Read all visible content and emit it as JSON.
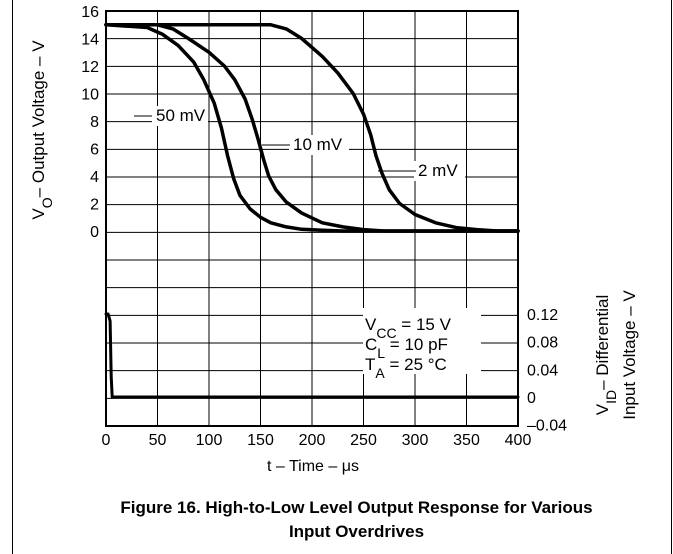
{
  "figure": {
    "caption_line1": "Figure 16. High-to-Low Level Output Response for Various",
    "caption_line2": "Input Overdrives"
  },
  "chart_data": {
    "type": "line",
    "title": "",
    "xlabel": "t – Time – μs",
    "ylabel_parts": {
      "v": "V",
      "sub": "O",
      "rest": "– Output Voltage – V"
    },
    "ylabel2_line1_parts": {
      "v": "V",
      "sub": "ID",
      "rest": "– Differential"
    },
    "ylabel2_line2": "Input Voltage – V",
    "xlim": [
      0,
      400
    ],
    "x_ticks": [
      "0",
      "50",
      "100",
      "150",
      "200",
      "250",
      "300",
      "350",
      "400"
    ],
    "ylim": [
      0,
      16
    ],
    "y_ticks": [
      "0",
      "2",
      "4",
      "6",
      "8",
      "10",
      "12",
      "14",
      "16"
    ],
    "y2lim": [
      -0.04,
      0.12
    ],
    "y2_ticks": [
      "–0.04",
      "0",
      "0.04",
      "0.08",
      "0.12"
    ],
    "grid": true,
    "series": [
      {
        "name": "50 mV",
        "axis": "left",
        "x": [
          0,
          40,
          55,
          70,
          85,
          95,
          105,
          112,
          118,
          124,
          130,
          140,
          150,
          160,
          175,
          190,
          210,
          230,
          260,
          300,
          400
        ],
        "y": [
          15,
          14.8,
          14.3,
          13.5,
          12.3,
          11,
          9.3,
          7.5,
          5.5,
          3.8,
          2.6,
          1.6,
          1.0,
          0.6,
          0.3,
          0.12,
          0.05,
          0,
          0,
          0,
          0
        ]
      },
      {
        "name": "10 mV",
        "axis": "left",
        "x": [
          0,
          50,
          65,
          80,
          100,
          115,
          125,
          135,
          142,
          148,
          153,
          158,
          165,
          175,
          190,
          210,
          230,
          250,
          270,
          300,
          400
        ],
        "y": [
          15,
          15,
          14.7,
          14,
          13,
          12,
          11,
          9.6,
          8.1,
          6.6,
          5.2,
          4.0,
          3.0,
          2.1,
          1.3,
          0.6,
          0.3,
          0.1,
          0,
          0,
          0
        ]
      },
      {
        "name": "2 mV",
        "axis": "left",
        "x": [
          0,
          160,
          175,
          190,
          210,
          225,
          240,
          250,
          257,
          262,
          268,
          275,
          285,
          300,
          320,
          340,
          360,
          380,
          400
        ],
        "y": [
          15,
          15,
          14.7,
          14,
          12.7,
          11.5,
          10,
          8.5,
          7,
          5.5,
          4.2,
          3,
          2,
          1.2,
          0.6,
          0.25,
          0.1,
          0,
          0
        ]
      },
      {
        "name": "",
        "axis": "right",
        "x": [
          0,
          2,
          4,
          5,
          6,
          8,
          400
        ],
        "y": [
          0.12,
          0.12,
          0.11,
          0.03,
          0,
          0,
          0
        ]
      }
    ],
    "annotations": [
      {
        "kind": "params",
        "lines": [
          {
            "parts": [
              {
                "t": "V"
              },
              {
                "t": "CC",
                "sub": true
              },
              {
                "t": " = 15 V"
              }
            ]
          },
          {
            "parts": [
              {
                "t": "C"
              },
              {
                "t": "L",
                "sub": true
              },
              {
                "t": " = 10 pF"
              }
            ]
          },
          {
            "parts": [
              {
                "t": "T"
              },
              {
                "t": "A",
                "sub": true
              },
              {
                "t": " = 25 °C"
              }
            ]
          }
        ]
      }
    ],
    "colors": {
      "line": "#000000",
      "grid": "#000000",
      "background": "#ffffff"
    }
  }
}
